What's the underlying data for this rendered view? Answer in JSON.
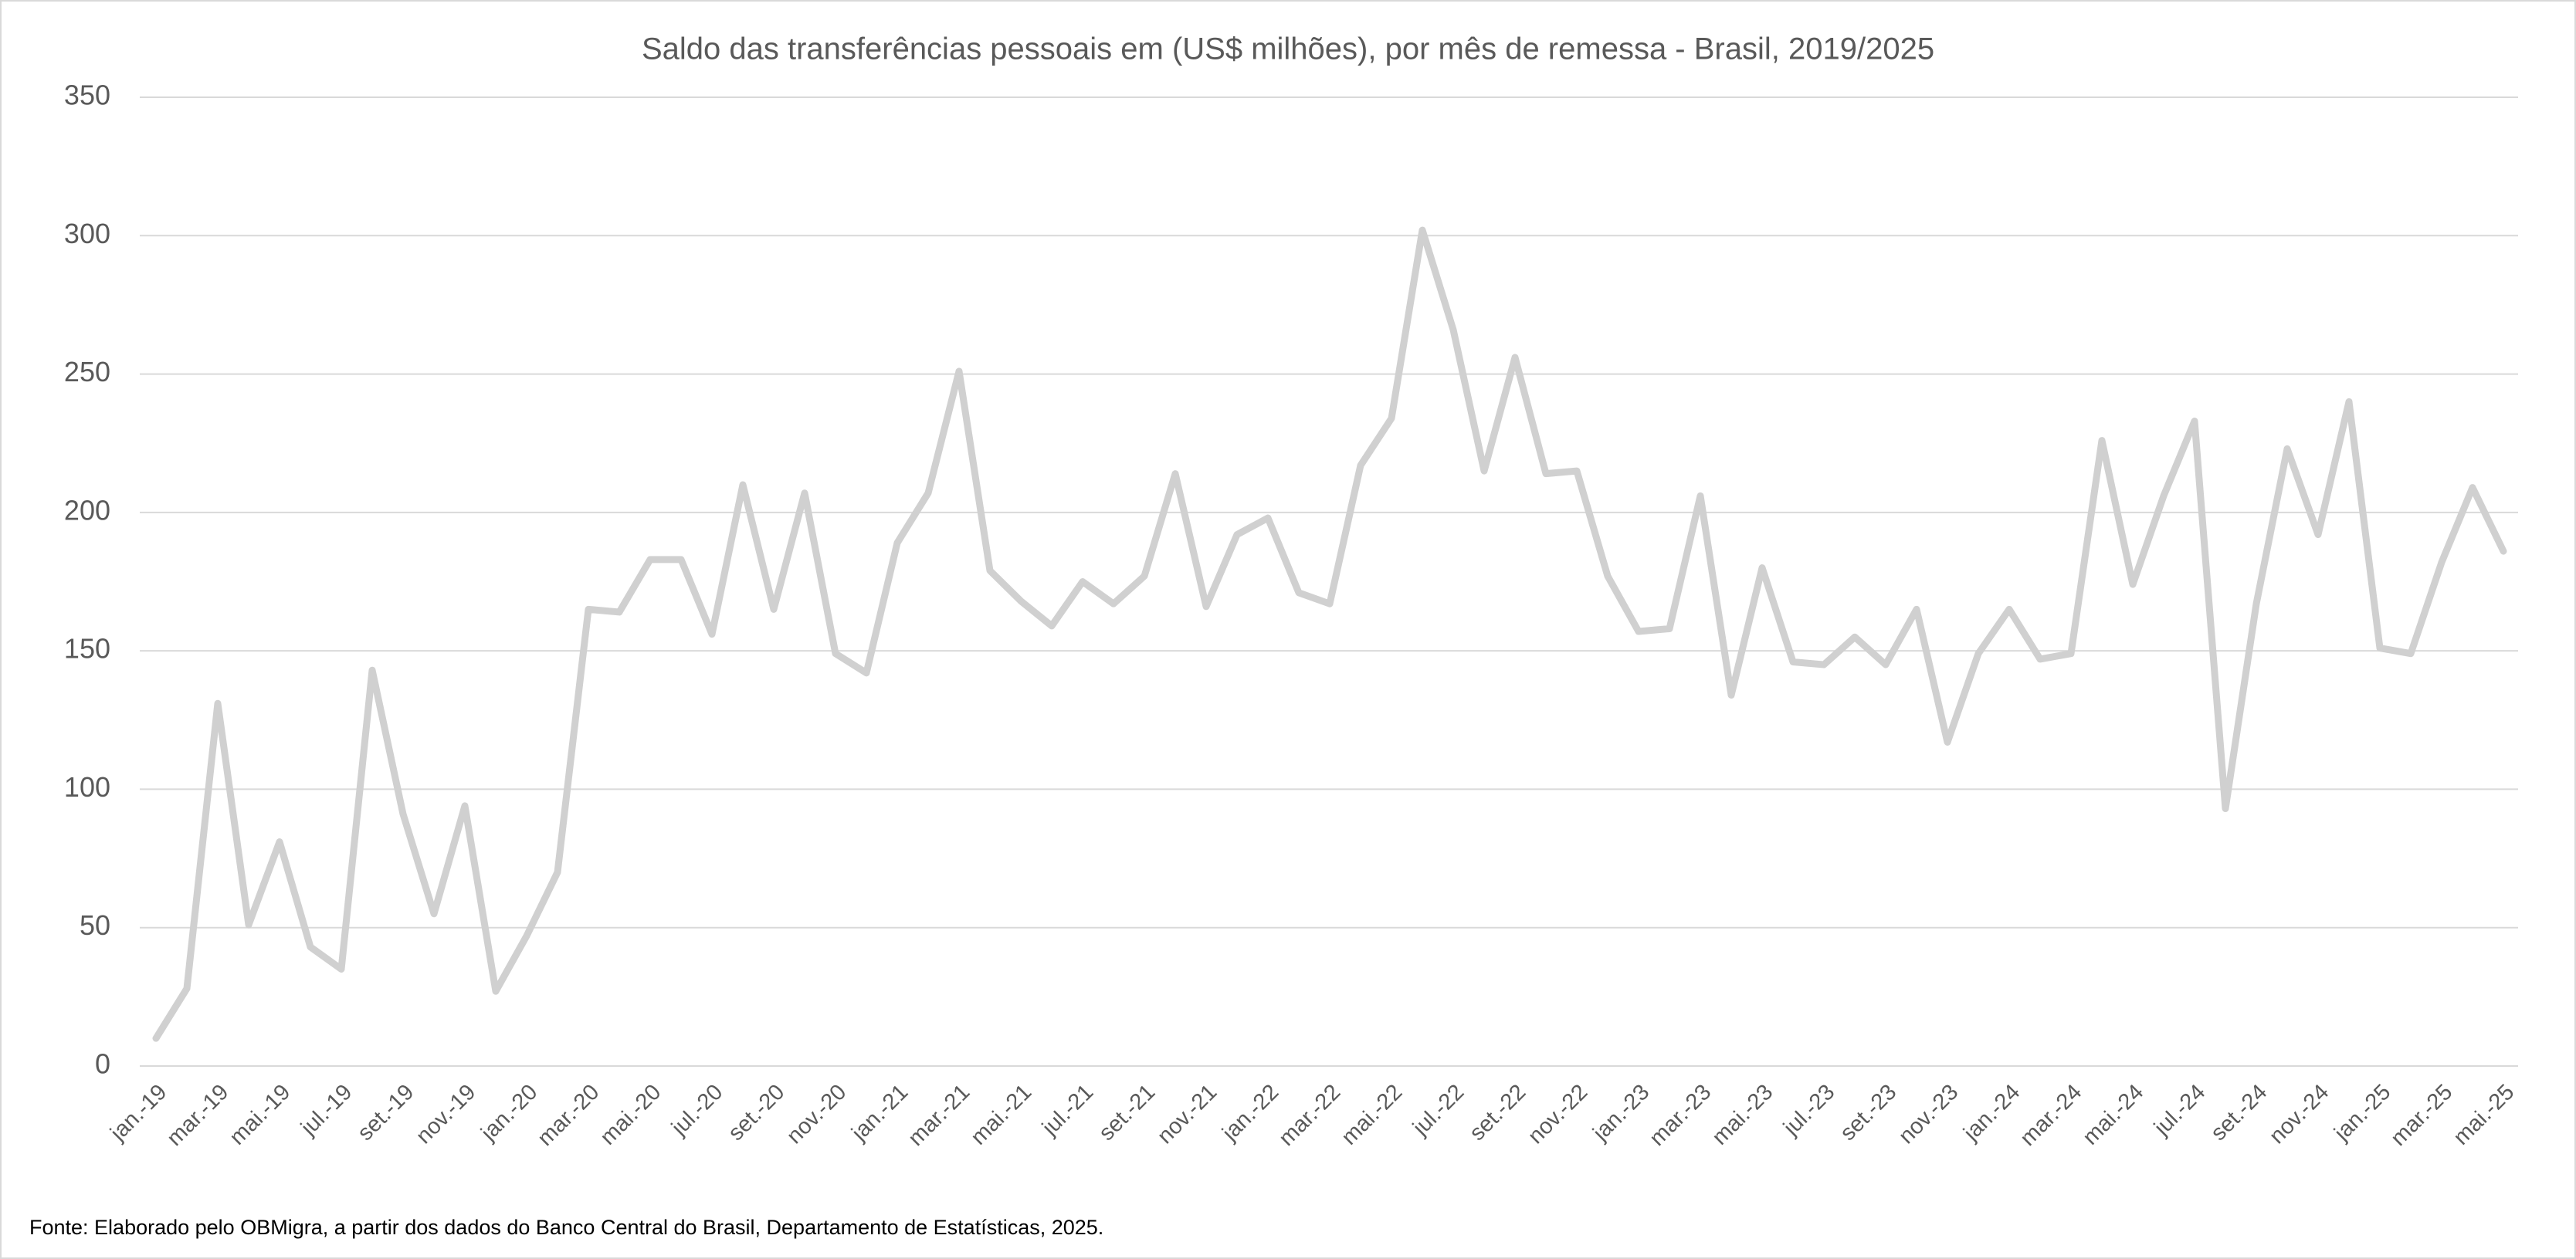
{
  "chart_data": {
    "type": "line",
    "title": "Saldo das transferências pessoais em (US$ milhões), por mês de remessa - Brasil, 2019/2025",
    "source": "Fonte:  Elaborado pelo OBMigra, a partir dos dados do Banco Central do Brasil, Departamento de Estatísticas, 2025.",
    "categories": [
      "jan.-19",
      null,
      "mar.-19",
      null,
      "mai.-19",
      null,
      "jul.-19",
      null,
      "set.-19",
      null,
      "nov.-19",
      null,
      "jan.-20",
      null,
      "mar.-20",
      null,
      "mai.-20",
      null,
      "jul.-20",
      null,
      "set.-20",
      null,
      "nov.-20",
      null,
      "jan.-21",
      null,
      "mar.-21",
      null,
      "mai.-21",
      null,
      "jul.-21",
      null,
      "set.-21",
      null,
      "nov.-21",
      null,
      "jan.-22",
      null,
      "mar.-22",
      null,
      "mai.-22",
      null,
      "jul.-22",
      null,
      "set.-22",
      null,
      "nov.-22",
      null,
      "jan.-23",
      null,
      "mar.-23",
      null,
      "mai.-23",
      null,
      "jul.-23",
      null,
      "set.-23",
      null,
      "nov.-23",
      null,
      "jan.-24",
      null,
      "mar.-24",
      null,
      "mai.-24",
      null,
      "jul.-24",
      null,
      "set.-24",
      null,
      "nov.-24",
      null,
      "jan.-25",
      null,
      "mar.-25",
      null,
      "mai.-25"
    ],
    "values": [
      10,
      28,
      131,
      51,
      81,
      43,
      35,
      143,
      91,
      55,
      94,
      27,
      47,
      70,
      165,
      164,
      183,
      183,
      156,
      210,
      165,
      207,
      149,
      142,
      189,
      207,
      251,
      179,
      168,
      159,
      175,
      167,
      177,
      214,
      166,
      192,
      198,
      171,
      167,
      217,
      234,
      302,
      266,
      215,
      256,
      214,
      215,
      177,
      157,
      158,
      206,
      134,
      180,
      146,
      145,
      155,
      145,
      165,
      117,
      149,
      165,
      147,
      149,
      226,
      174,
      206,
      233,
      93,
      167,
      223,
      192,
      240,
      151,
      149,
      182,
      209,
      186
    ],
    "color": "#d0d0d0",
    "ylim": [
      0,
      350
    ],
    "yticks": [
      0,
      50,
      100,
      150,
      200,
      250,
      300,
      350
    ],
    "grid": true
  }
}
